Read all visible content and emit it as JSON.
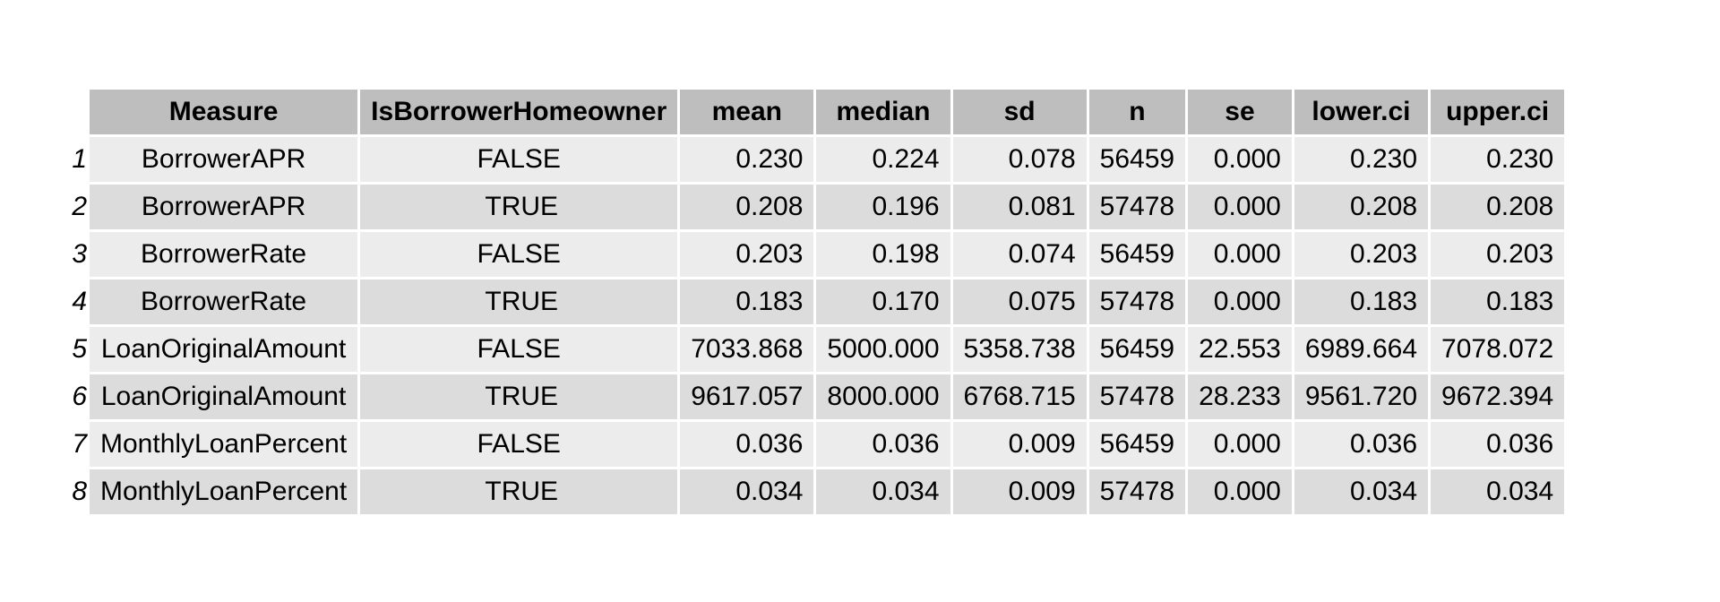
{
  "chart_data": {
    "type": "table",
    "columns": [
      "Measure",
      "IsBorrowerHomeowner",
      "mean",
      "median",
      "sd",
      "n",
      "se",
      "lower.ci",
      "upper.ci"
    ],
    "rows": [
      {
        "index": "1",
        "cells": [
          "BorrowerAPR",
          "FALSE",
          "0.230",
          "0.224",
          "0.078",
          "56459",
          "0.000",
          "0.230",
          "0.230"
        ]
      },
      {
        "index": "2",
        "cells": [
          "BorrowerAPR",
          "TRUE",
          "0.208",
          "0.196",
          "0.081",
          "57478",
          "0.000",
          "0.208",
          "0.208"
        ]
      },
      {
        "index": "3",
        "cells": [
          "BorrowerRate",
          "FALSE",
          "0.203",
          "0.198",
          "0.074",
          "56459",
          "0.000",
          "0.203",
          "0.203"
        ]
      },
      {
        "index": "4",
        "cells": [
          "BorrowerRate",
          "TRUE",
          "0.183",
          "0.170",
          "0.075",
          "57478",
          "0.000",
          "0.183",
          "0.183"
        ]
      },
      {
        "index": "5",
        "cells": [
          "LoanOriginalAmount",
          "FALSE",
          "7033.868",
          "5000.000",
          "5358.738",
          "56459",
          "22.553",
          "6989.664",
          "7078.072"
        ]
      },
      {
        "index": "6",
        "cells": [
          "LoanOriginalAmount",
          "TRUE",
          "9617.057",
          "8000.000",
          "6768.715",
          "57478",
          "28.233",
          "9561.720",
          "9672.394"
        ]
      },
      {
        "index": "7",
        "cells": [
          "MonthlyLoanPercent",
          "FALSE",
          "0.036",
          "0.036",
          "0.009",
          "56459",
          "0.000",
          "0.036",
          "0.036"
        ]
      },
      {
        "index": "8",
        "cells": [
          "MonthlyLoanPercent",
          "TRUE",
          "0.034",
          "0.034",
          "0.009",
          "57478",
          "0.000",
          "0.034",
          "0.034"
        ]
      }
    ]
  },
  "colors": {
    "header_bg": "#bebebe",
    "row_odd_bg": "#ececec",
    "row_even_bg": "#dcdcdc"
  }
}
